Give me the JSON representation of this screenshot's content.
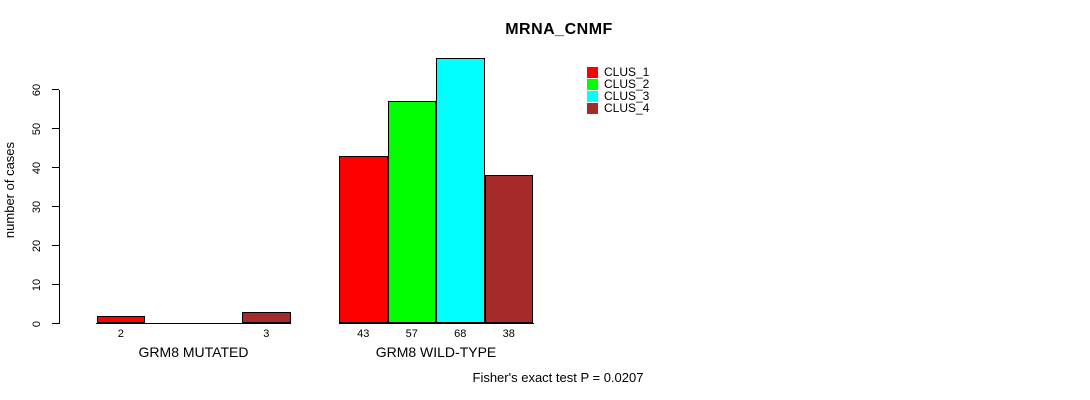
{
  "chart_data": {
    "type": "bar",
    "title": "MRNA_CNMF",
    "ylabel": "number of cases",
    "xlabel": "",
    "ylim": [
      0,
      60
    ],
    "yticks": [
      0,
      10,
      20,
      30,
      40,
      50,
      60
    ],
    "grid": false,
    "legend_position": "top-right",
    "categories": [
      "GRM8 MUTATED",
      "GRM8 WILD-TYPE"
    ],
    "series": [
      {
        "name": "CLUS_1",
        "color": "#FF0000",
        "values": [
          2,
          43
        ]
      },
      {
        "name": "CLUS_2",
        "color": "#00FF00",
        "values": [
          0,
          57
        ]
      },
      {
        "name": "CLUS_3",
        "color": "#00FFFF",
        "values": [
          0,
          68
        ]
      },
      {
        "name": "CLUS_4",
        "color": "#A52A2A",
        "values": [
          3,
          38
        ]
      }
    ],
    "bar_value_labels": [
      [
        "2",
        "",
        "",
        "3"
      ],
      [
        "43",
        "57",
        "68",
        "38"
      ]
    ],
    "axis_color": "#000000",
    "annotation": "Fisher's exact test P = 0.0207"
  }
}
